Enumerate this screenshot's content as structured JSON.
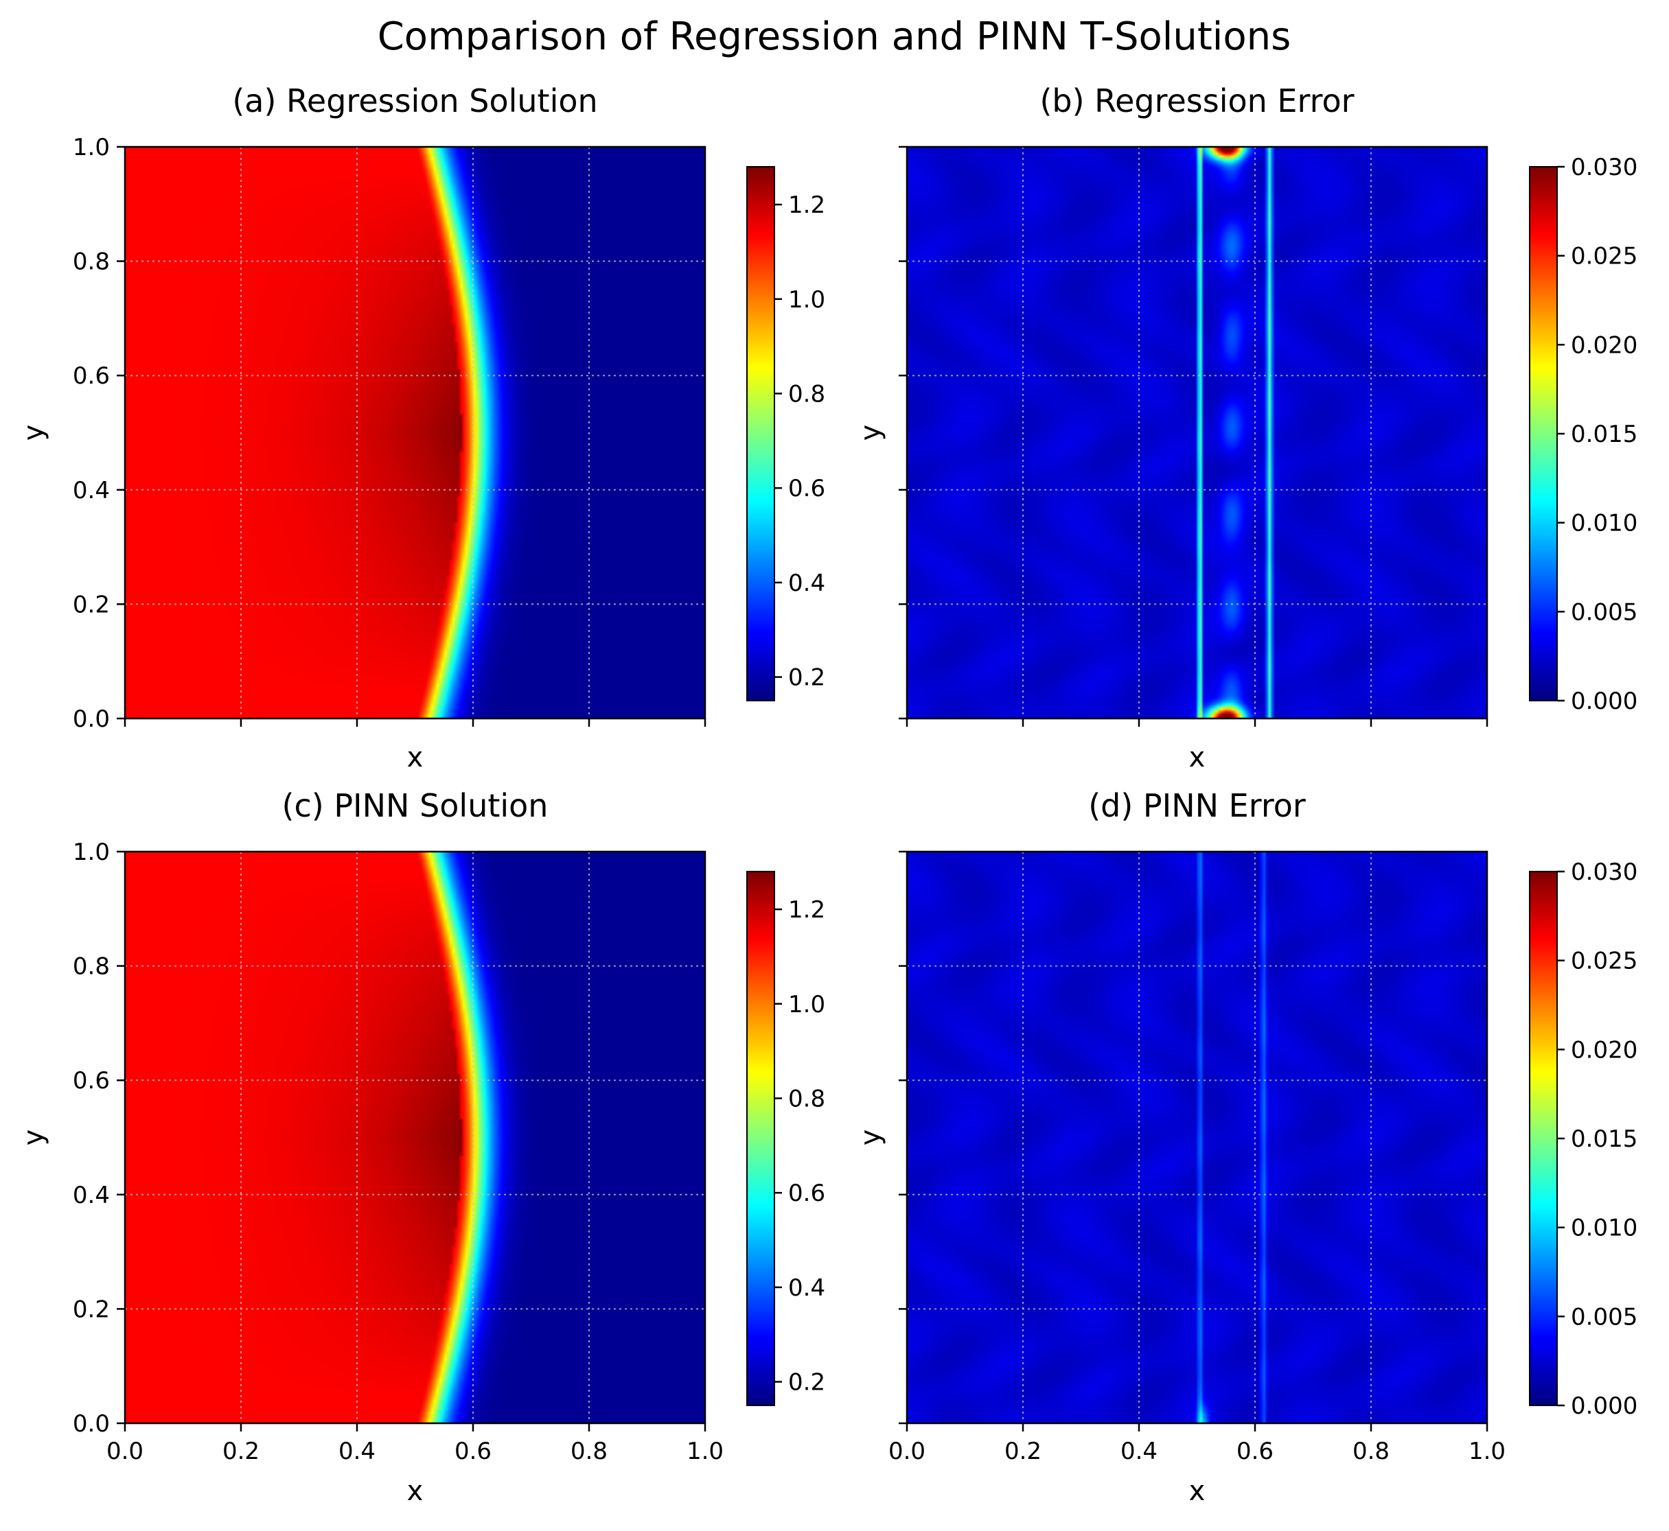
{
  "figure_title": "Comparison of Regression and PINN T-Solutions",
  "chart_data": [
    {
      "id": "a",
      "type": "heatmap",
      "title": "(a) Regression Solution",
      "xlabel": "x",
      "ylabel": "y",
      "xlim": [
        0,
        1
      ],
      "ylim": [
        0,
        1
      ],
      "xticks": [
        0.0,
        0.2,
        0.4,
        0.6,
        0.8,
        1.0
      ],
      "yticks": [
        0.0,
        0.2,
        0.4,
        0.6,
        0.8,
        1.0
      ],
      "xtick_labels_shown": false,
      "ytick_labels_shown": true,
      "grid": true,
      "colormap": "jet",
      "field": "solution",
      "colorbar": {
        "vmin": 0.15,
        "vmax": 1.28,
        "ticks": [
          0.2,
          0.4,
          0.6,
          0.8,
          1.0,
          1.2
        ],
        "tick_labels": [
          "0.2",
          "0.4",
          "0.6",
          "0.8",
          "1.0",
          "1.2"
        ]
      },
      "front": {
        "x_center": 0.5,
        "x_bottom": 0.5,
        "x_middle": 0.58,
        "width": 0.11
      }
    },
    {
      "id": "b",
      "type": "heatmap",
      "title": "(b) Regression Error",
      "xlabel": "x",
      "ylabel": "y",
      "xlim": [
        0,
        1
      ],
      "ylim": [
        0,
        1
      ],
      "xticks": [
        0.0,
        0.2,
        0.4,
        0.6,
        0.8,
        1.0
      ],
      "yticks": [
        0.0,
        0.2,
        0.4,
        0.6,
        0.8,
        1.0
      ],
      "xtick_labels_shown": false,
      "ytick_labels_shown": false,
      "grid": true,
      "colormap": "jet",
      "field": "error",
      "colorbar": {
        "vmin": 0.0,
        "vmax": 0.03,
        "ticks": [
          0.0,
          0.005,
          0.01,
          0.015,
          0.02,
          0.025,
          0.03
        ],
        "tick_labels": [
          "0.000",
          "0.005",
          "0.010",
          "0.015",
          "0.020",
          "0.025",
          "0.030"
        ]
      },
      "error_lines_x": [
        0.505,
        0.625
      ],
      "peak_error": 0.03
    },
    {
      "id": "c",
      "type": "heatmap",
      "title": "(c) PINN Solution",
      "xlabel": "x",
      "ylabel": "y",
      "xlim": [
        0,
        1
      ],
      "ylim": [
        0,
        1
      ],
      "xticks": [
        0.0,
        0.2,
        0.4,
        0.6,
        0.8,
        1.0
      ],
      "yticks": [
        0.0,
        0.2,
        0.4,
        0.6,
        0.8,
        1.0
      ],
      "xtick_labels_shown": true,
      "ytick_labels_shown": true,
      "xtick_labels": [
        "0.0",
        "0.2",
        "0.4",
        "0.6",
        "0.8",
        "1.0"
      ],
      "grid": true,
      "colormap": "jet",
      "field": "solution",
      "colorbar": {
        "vmin": 0.15,
        "vmax": 1.28,
        "ticks": [
          0.2,
          0.4,
          0.6,
          0.8,
          1.0,
          1.2
        ],
        "tick_labels": [
          "0.2",
          "0.4",
          "0.6",
          "0.8",
          "1.0",
          "1.2"
        ]
      },
      "front": {
        "x_center": 0.5,
        "x_bottom": 0.5,
        "x_middle": 0.58,
        "width": 0.11
      }
    },
    {
      "id": "d",
      "type": "heatmap",
      "title": "(d) PINN Error",
      "xlabel": "x",
      "ylabel": "y",
      "xlim": [
        0,
        1
      ],
      "ylim": [
        0,
        1
      ],
      "xticks": [
        0.0,
        0.2,
        0.4,
        0.6,
        0.8,
        1.0
      ],
      "yticks": [
        0.0,
        0.2,
        0.4,
        0.6,
        0.8,
        1.0
      ],
      "xtick_labels_shown": true,
      "ytick_labels_shown": false,
      "xtick_labels": [
        "0.0",
        "0.2",
        "0.4",
        "0.6",
        "0.8",
        "1.0"
      ],
      "grid": true,
      "colormap": "jet",
      "field": "error",
      "colorbar": {
        "vmin": 0.0,
        "vmax": 0.03,
        "ticks": [
          0.0,
          0.005,
          0.01,
          0.015,
          0.02,
          0.025,
          0.03
        ],
        "tick_labels": [
          "0.000",
          "0.005",
          "0.010",
          "0.015",
          "0.020",
          "0.025",
          "0.030"
        ]
      },
      "error_lines_x": [
        0.505,
        0.615
      ],
      "peak_error": 0.012
    }
  ],
  "ytick_labels": [
    "0.0",
    "0.2",
    "0.4",
    "0.6",
    "0.8",
    "1.0"
  ]
}
